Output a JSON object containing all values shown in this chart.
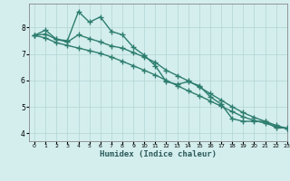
{
  "xlabel": "Humidex (Indice chaleur)",
  "background_color": "#d4eeee",
  "grid_color": "#b8d8d8",
  "line_color": "#2d7d6e",
  "xlim": [
    -0.5,
    23
  ],
  "ylim": [
    3.7,
    8.9
  ],
  "yticks": [
    4,
    5,
    6,
    7,
    8
  ],
  "xticks": [
    0,
    1,
    2,
    3,
    4,
    5,
    6,
    7,
    8,
    9,
    10,
    11,
    12,
    13,
    14,
    15,
    16,
    17,
    18,
    19,
    20,
    21,
    22,
    23
  ],
  "series1_x": [
    0,
    1,
    2,
    3,
    4,
    5,
    6,
    7,
    8,
    9,
    10,
    11,
    12,
    13,
    14,
    15,
    16,
    17,
    18,
    19,
    20,
    21,
    22,
    23
  ],
  "series1_y": [
    7.7,
    7.9,
    7.55,
    7.5,
    8.6,
    8.2,
    8.4,
    7.85,
    7.72,
    7.25,
    6.95,
    6.55,
    5.95,
    5.85,
    5.95,
    5.8,
    5.38,
    5.1,
    4.55,
    4.45,
    4.45,
    4.45,
    4.2,
    4.2
  ],
  "series2_x": [
    0,
    1,
    2,
    3,
    4,
    5,
    6,
    7,
    8,
    9,
    10,
    11,
    12,
    13,
    14,
    15,
    16,
    17,
    18,
    19,
    20,
    21,
    22,
    23
  ],
  "series2_y": [
    7.7,
    7.6,
    7.42,
    7.32,
    7.22,
    7.12,
    7.02,
    6.88,
    6.72,
    6.55,
    6.38,
    6.2,
    6.0,
    5.8,
    5.6,
    5.42,
    5.22,
    5.02,
    4.82,
    4.62,
    4.48,
    4.38,
    4.25,
    4.18
  ],
  "series3_x": [
    0,
    1,
    2,
    3,
    4,
    5,
    6,
    7,
    8,
    9,
    10,
    11,
    12,
    13,
    14,
    15,
    16,
    17,
    18,
    19,
    20,
    21,
    22,
    23
  ],
  "series3_y": [
    7.7,
    7.75,
    7.55,
    7.45,
    7.72,
    7.58,
    7.45,
    7.3,
    7.22,
    7.05,
    6.88,
    6.68,
    6.38,
    6.18,
    5.98,
    5.75,
    5.5,
    5.25,
    5.0,
    4.78,
    4.6,
    4.45,
    4.3,
    4.18
  ]
}
